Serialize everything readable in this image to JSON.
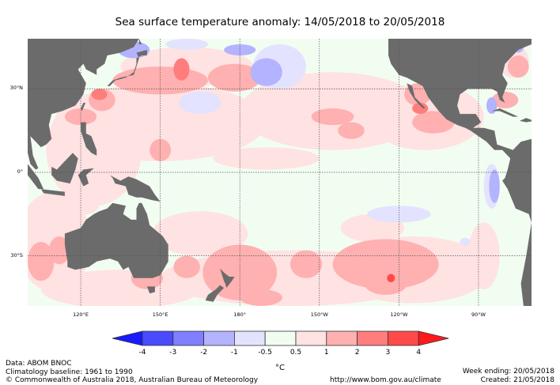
{
  "title": "Sea surface temperature anomaly: 14/05/2018 to 20/05/2018",
  "map": {
    "lat_range": [
      -48,
      48
    ],
    "lon_range": [
      100,
      290
    ],
    "lat_labels": [
      {
        "lat": 30,
        "text": "30°N"
      },
      {
        "lat": 0,
        "text": "0°"
      },
      {
        "lat": -30,
        "text": "30°S"
      }
    ],
    "lon_labels": [
      {
        "lon": 120,
        "text": "120°E"
      },
      {
        "lon": 150,
        "text": "150°E"
      },
      {
        "lon": 180,
        "text": "180°"
      },
      {
        "lon": 210,
        "text": "150°W"
      },
      {
        "lon": 240,
        "text": "120°W"
      },
      {
        "lon": 270,
        "text": "90°W"
      }
    ],
    "land_color": "#6b6b6b",
    "grid_color": "#555555"
  },
  "colorbar": {
    "levels": [
      "-4",
      "-3",
      "-2",
      "-1",
      "-0.5",
      "0.5",
      "1",
      "2",
      "3",
      "4"
    ],
    "colors": [
      "#1a1aff",
      "#4a4aff",
      "#7f7fff",
      "#b3b3ff",
      "#e3e3ff",
      "#f2fdf2",
      "#ffe2e2",
      "#ffb0b0",
      "#ff7d7d",
      "#ff4a4a",
      "#ff1a1a"
    ],
    "unit": "°C"
  },
  "footer": {
    "data_source": "Data: ABOM BNOC",
    "baseline": "Climatology baseline: 1961 to 1990",
    "copyright": "© Commonwealth of Australia 2018, Australian Bureau of Meteorology",
    "url": "http://www.bom.gov.au/climate",
    "week_ending": "Week ending: 20/05/2018",
    "created": "Created: 21/05/2018"
  }
}
